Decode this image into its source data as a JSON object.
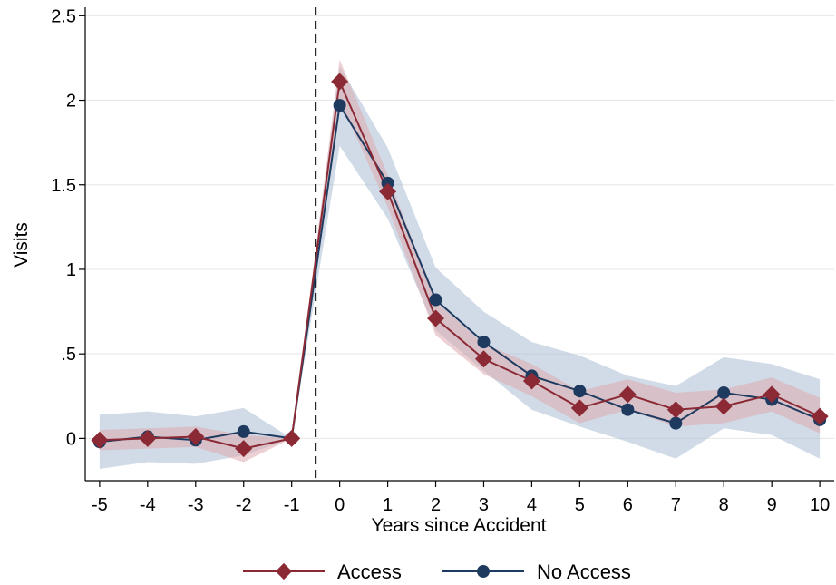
{
  "chart_data": {
    "type": "line",
    "title": "",
    "xlabel": "Years since Accident",
    "ylabel": "Visits",
    "x": [
      -5,
      -4,
      -3,
      -2,
      -1,
      0,
      1,
      2,
      3,
      4,
      5,
      6,
      7,
      8,
      9,
      10
    ],
    "xlim": [
      -5.3,
      10.3
    ],
    "ylim": [
      -0.25,
      2.55
    ],
    "x_ticks": [
      "-5",
      "-4",
      "-3",
      "-2",
      "-1",
      "0",
      "1",
      "2",
      "3",
      "4",
      "5",
      "6",
      "7",
      "8",
      "9",
      "10"
    ],
    "y_ticks": [
      {
        "value": 0,
        "label": "0"
      },
      {
        "value": 0.5,
        "label": ".5"
      },
      {
        "value": 1,
        "label": "1"
      },
      {
        "value": 1.5,
        "label": "1.5"
      },
      {
        "value": 2,
        "label": "2"
      },
      {
        "value": 2.5,
        "label": "2.5"
      }
    ],
    "reference_line_x": -0.5,
    "grid": true,
    "legend_position": "bottom",
    "series": [
      {
        "name": "No Access",
        "color": "#1f3a5f",
        "band_color": "#a9bdd3",
        "marker": "circle",
        "values": [
          -0.02,
          0.01,
          -0.01,
          0.04,
          0.0,
          1.97,
          1.51,
          0.82,
          0.57,
          0.37,
          0.28,
          0.17,
          0.09,
          0.27,
          0.23,
          0.11
        ],
        "ci_lower": [
          -0.18,
          -0.14,
          -0.15,
          -0.1,
          0.0,
          1.73,
          1.3,
          0.64,
          0.4,
          0.17,
          0.07,
          -0.02,
          -0.12,
          0.06,
          0.02,
          -0.12
        ],
        "ci_upper": [
          0.14,
          0.16,
          0.13,
          0.18,
          0.0,
          2.2,
          1.72,
          1.01,
          0.75,
          0.57,
          0.49,
          0.37,
          0.31,
          0.48,
          0.44,
          0.35
        ]
      },
      {
        "name": "Access",
        "color": "#8b2a35",
        "band_color": "#dca9ae",
        "marker": "diamond",
        "values": [
          -0.01,
          0.0,
          0.01,
          -0.06,
          0.0,
          2.11,
          1.46,
          0.71,
          0.47,
          0.34,
          0.18,
          0.26,
          0.17,
          0.19,
          0.26,
          0.13
        ],
        "ci_lower": [
          -0.07,
          -0.06,
          -0.05,
          -0.14,
          0.0,
          2.0,
          1.37,
          0.61,
          0.38,
          0.25,
          0.09,
          0.17,
          0.07,
          0.09,
          0.16,
          0.03
        ],
        "ci_upper": [
          0.05,
          0.06,
          0.07,
          0.02,
          0.0,
          2.24,
          1.56,
          0.81,
          0.56,
          0.44,
          0.28,
          0.35,
          0.27,
          0.29,
          0.36,
          0.24
        ]
      }
    ],
    "legend": [
      {
        "label": "Access",
        "marker": "diamond",
        "color": "#8b2a35"
      },
      {
        "label": "No Access",
        "marker": "circle",
        "color": "#1f3a5f"
      }
    ]
  }
}
